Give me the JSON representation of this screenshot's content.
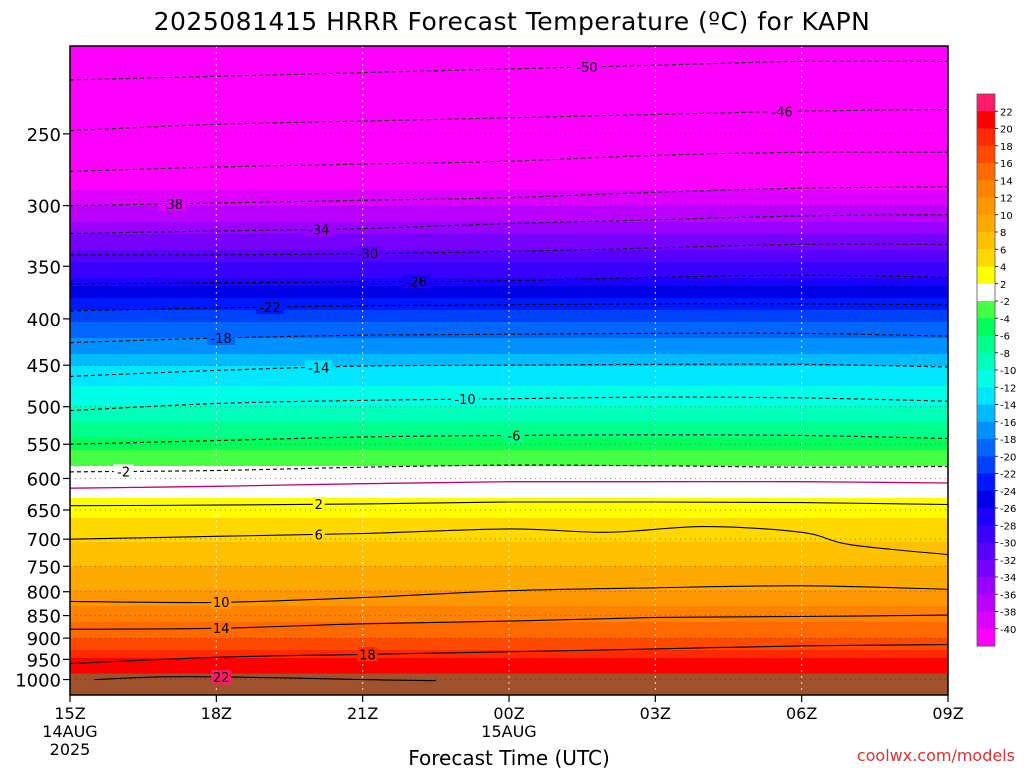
{
  "chart_data": {
    "type": "heatmap",
    "title": "2025081415 HRRR Forecast Temperature (ºC) for KAPN",
    "xlabel": "Forecast Time (UTC)",
    "ylabel": "",
    "credit": "coolwx.com/models",
    "x_ticks": [
      {
        "t": 0,
        "lines": [
          "15Z",
          "14AUG",
          "2025"
        ]
      },
      {
        "t": 3,
        "lines": [
          "18Z"
        ]
      },
      {
        "t": 6,
        "lines": [
          "21Z"
        ]
      },
      {
        "t": 9,
        "lines": [
          "00Z",
          "15AUG"
        ]
      },
      {
        "t": 12,
        "lines": [
          "03Z"
        ]
      },
      {
        "t": 15,
        "lines": [
          "06Z"
        ]
      },
      {
        "t": 18,
        "lines": [
          "09Z"
        ]
      }
    ],
    "xlim": [
      0,
      18
    ],
    "y_axis": {
      "scale": "log-pressure",
      "top_hPa": 200,
      "bottom_hPa": 1040
    },
    "y_ticks": [
      250,
      300,
      350,
      400,
      450,
      500,
      550,
      600,
      650,
      700,
      750,
      800,
      850,
      900,
      950,
      1000
    ],
    "colorbar": {
      "levels": [
        22,
        20,
        18,
        16,
        14,
        12,
        10,
        8,
        6,
        4,
        2,
        -2,
        -4,
        -6,
        -8,
        -10,
        -12,
        -14,
        -16,
        -18,
        -20,
        -22,
        -24,
        -26,
        -28,
        -30,
        -32,
        -34,
        -36,
        -38,
        -40
      ],
      "colors": [
        "#ff1a6e",
        "#ff0000",
        "#ff2a00",
        "#ff4a00",
        "#ff6a00",
        "#ff8200",
        "#ff9800",
        "#ffaa00",
        "#ffc000",
        "#ffd800",
        "#ffff00",
        "#ffffff",
        "#44ff44",
        "#00ff5a",
        "#00ff8c",
        "#00ffbb",
        "#00ffe6",
        "#00e6ff",
        "#00bbff",
        "#0090ff",
        "#0066ff",
        "#0040ff",
        "#0018ff",
        "#0000e6",
        "#1c00ff",
        "#3a00ff",
        "#5a00ff",
        "#7800ff",
        "#9a00ff",
        "#bb00ff",
        "#de00ff",
        "#ff00ff"
      ]
    },
    "temperature_profile": [
      {
        "p": 200,
        "T": -55
      },
      {
        "p": 230,
        "T": -50
      },
      {
        "p": 260,
        "T": -45
      },
      {
        "p": 300,
        "T": -38
      },
      {
        "p": 330,
        "T": -33
      },
      {
        "p": 360,
        "T": -28
      },
      {
        "p": 390,
        "T": -22
      },
      {
        "p": 420,
        "T": -18
      },
      {
        "p": 460,
        "T": -13
      },
      {
        "p": 500,
        "T": -10
      },
      {
        "p": 540,
        "T": -6
      },
      {
        "p": 590,
        "T": -1
      },
      {
        "p": 610,
        "T": 1
      },
      {
        "p": 630,
        "T": 2
      },
      {
        "p": 680,
        "T": 5
      },
      {
        "p": 750,
        "T": 8
      },
      {
        "p": 800,
        "T": 10
      },
      {
        "p": 850,
        "T": 13
      },
      {
        "p": 900,
        "T": 16
      },
      {
        "p": 950,
        "T": 20
      },
      {
        "p": 1000,
        "T": 23
      }
    ],
    "ground_hPa": 985,
    "ground_color": "#a0522d",
    "contours": [
      {
        "level": -50,
        "style": "dashed",
        "color": "#000000",
        "label": "-50",
        "label_t": 10.6,
        "points": [
          [
            0,
            218
          ],
          [
            3,
            216
          ],
          [
            6,
            214
          ],
          [
            9,
            212
          ],
          [
            12,
            210
          ],
          [
            15,
            208
          ],
          [
            18,
            208
          ]
        ]
      },
      {
        "level": -46,
        "style": "dashed",
        "color": "#000000",
        "label": "-46",
        "label_t": 14.6,
        "points": [
          [
            0,
            248
          ],
          [
            3,
            244
          ],
          [
            6,
            242
          ],
          [
            9,
            240
          ],
          [
            12,
            238
          ],
          [
            15,
            236
          ],
          [
            18,
            235
          ]
        ]
      },
      {
        "level": -42,
        "style": "dashed",
        "color": "#000000",
        "label": "",
        "label_t": 0,
        "points": [
          [
            0,
            275
          ],
          [
            3,
            272
          ],
          [
            6,
            270
          ],
          [
            9,
            268
          ],
          [
            12,
            264
          ],
          [
            15,
            262
          ],
          [
            18,
            262
          ]
        ]
      },
      {
        "level": -38,
        "style": "dashed",
        "color": "#000000",
        "label": "-38",
        "label_t": 2.1,
        "points": [
          [
            0,
            300
          ],
          [
            3,
            298
          ],
          [
            6,
            296
          ],
          [
            9,
            294
          ],
          [
            12,
            290
          ],
          [
            15,
            287
          ],
          [
            18,
            286
          ]
        ]
      },
      {
        "level": -34,
        "style": "dashed",
        "color": "#000000",
        "label": "-34",
        "label_t": 5.1,
        "points": [
          [
            0,
            322
          ],
          [
            3,
            320
          ],
          [
            6,
            318
          ],
          [
            9,
            314
          ],
          [
            12,
            311
          ],
          [
            15,
            308
          ],
          [
            18,
            307
          ]
        ]
      },
      {
        "level": -30,
        "style": "dashed",
        "color": "#000000",
        "label": "-30",
        "label_t": 6.1,
        "points": [
          [
            0,
            340
          ],
          [
            3,
            340
          ],
          [
            6,
            339
          ],
          [
            9,
            337
          ],
          [
            12,
            334
          ],
          [
            15,
            331
          ],
          [
            18,
            331
          ]
        ]
      },
      {
        "level": -26,
        "style": "dashed",
        "color": "#000000",
        "label": "-26",
        "label_t": 7.1,
        "points": [
          [
            0,
            366
          ],
          [
            3,
            365
          ],
          [
            6,
            364
          ],
          [
            9,
            363
          ],
          [
            12,
            360
          ],
          [
            15,
            358
          ],
          [
            18,
            360
          ]
        ]
      },
      {
        "level": -22,
        "style": "dashed",
        "color": "#000000",
        "label": "-22",
        "label_t": 4.1,
        "points": [
          [
            0,
            392
          ],
          [
            3,
            389
          ],
          [
            6,
            387
          ],
          [
            9,
            386
          ],
          [
            12,
            385
          ],
          [
            15,
            385
          ],
          [
            18,
            386
          ]
        ]
      },
      {
        "level": -18,
        "style": "dashed",
        "color": "#000000",
        "label": "-18",
        "label_t": 3.1,
        "points": [
          [
            0,
            425
          ],
          [
            3,
            420
          ],
          [
            6,
            417
          ],
          [
            9,
            416
          ],
          [
            12,
            415
          ],
          [
            15,
            415
          ],
          [
            18,
            418
          ]
        ]
      },
      {
        "level": -14,
        "style": "dashed",
        "color": "#000000",
        "label": "-14",
        "label_t": 5.1,
        "points": [
          [
            0,
            463
          ],
          [
            3,
            456
          ],
          [
            6,
            451
          ],
          [
            9,
            450
          ],
          [
            12,
            449
          ],
          [
            15,
            449
          ],
          [
            18,
            452
          ]
        ]
      },
      {
        "level": -10,
        "style": "dashed",
        "color": "#000000",
        "label": "-10",
        "label_t": 8.1,
        "points": [
          [
            0,
            505
          ],
          [
            3,
            496
          ],
          [
            6,
            492
          ],
          [
            9,
            490
          ],
          [
            12,
            488
          ],
          [
            15,
            489
          ],
          [
            18,
            493
          ]
        ]
      },
      {
        "level": -6,
        "style": "dashed",
        "color": "#000000",
        "label": "-6",
        "label_t": 9.1,
        "points": [
          [
            0,
            550
          ],
          [
            3,
            545
          ],
          [
            6,
            540
          ],
          [
            9,
            538
          ],
          [
            12,
            537
          ],
          [
            15,
            538
          ],
          [
            18,
            542
          ]
        ]
      },
      {
        "level": -2,
        "style": "dashed",
        "color": "#000000",
        "label": "-2",
        "label_t": 1.1,
        "points": [
          [
            0,
            590
          ],
          [
            3,
            588
          ],
          [
            6,
            583
          ],
          [
            9,
            580
          ],
          [
            12,
            581
          ],
          [
            15,
            583
          ],
          [
            18,
            582
          ]
        ]
      },
      {
        "level": 0,
        "style": "solid",
        "color": "#c0007a",
        "label": "",
        "label_t": 0,
        "points": [
          [
            0,
            615
          ],
          [
            3,
            612
          ],
          [
            6,
            608
          ],
          [
            9,
            605
          ],
          [
            12,
            605
          ],
          [
            15,
            605
          ],
          [
            18,
            607
          ]
        ]
      },
      {
        "level": 2,
        "style": "solid",
        "color": "#000000",
        "label": "2",
        "label_t": 5.1,
        "points": [
          [
            0,
            643
          ],
          [
            3,
            642
          ],
          [
            6,
            640
          ],
          [
            9,
            637
          ],
          [
            12,
            637
          ],
          [
            15,
            638
          ],
          [
            18,
            641
          ]
        ]
      },
      {
        "level": 6,
        "style": "solid",
        "color": "#000000",
        "label": "6",
        "label_t": 5.1,
        "points": [
          [
            0,
            700
          ],
          [
            3,
            695
          ],
          [
            6,
            690
          ],
          [
            9,
            682
          ],
          [
            11,
            688
          ],
          [
            13,
            678
          ],
          [
            15,
            688
          ],
          [
            16,
            710
          ],
          [
            18,
            728
          ]
        ]
      },
      {
        "level": 10,
        "style": "solid",
        "color": "#000000",
        "label": "10",
        "label_t": 3.1,
        "points": [
          [
            0,
            820
          ],
          [
            3,
            822
          ],
          [
            6,
            812
          ],
          [
            9,
            798
          ],
          [
            12,
            792
          ],
          [
            15,
            788
          ],
          [
            18,
            795
          ]
        ]
      },
      {
        "level": 14,
        "style": "solid",
        "color": "#000000",
        "label": "14",
        "label_t": 3.1,
        "points": [
          [
            0,
            880
          ],
          [
            3,
            878
          ],
          [
            6,
            868
          ],
          [
            9,
            862
          ],
          [
            12,
            854
          ],
          [
            15,
            852
          ],
          [
            18,
            849
          ]
        ]
      },
      {
        "level": 18,
        "style": "solid",
        "color": "#000000",
        "label": "18",
        "label_t": 6.1,
        "points": [
          [
            0,
            960
          ],
          [
            3,
            945
          ],
          [
            6,
            938
          ],
          [
            9,
            932
          ],
          [
            12,
            925
          ],
          [
            15,
            918
          ],
          [
            18,
            915
          ]
        ]
      },
      {
        "level": 22,
        "style": "solid",
        "color": "#000000",
        "label": "22",
        "label_t": 3.1,
        "points": [
          [
            0.5,
            1000
          ],
          [
            2,
            993
          ],
          [
            4,
            995
          ],
          [
            6,
            1000
          ],
          [
            7.5,
            1003
          ]
        ]
      }
    ]
  }
}
